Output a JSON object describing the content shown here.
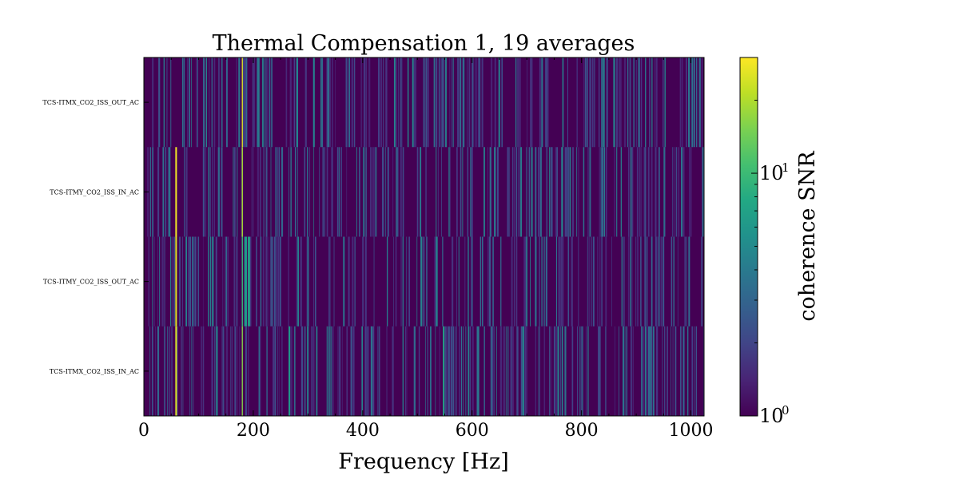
{
  "chart_data": {
    "type": "heatmap",
    "title": "Thermal Compensation 1, 19 averages",
    "xlabel": "Frequency [Hz]",
    "xlim": [
      0,
      1024
    ],
    "x_ticks": [
      0,
      200,
      400,
      600,
      800,
      1000
    ],
    "x_tick_labels": [
      "0",
      "200",
      "400",
      "600",
      "800",
      "1000"
    ],
    "rows": [
      {
        "label": "TCS-ITMX_CO2_ISS_OUT_AC",
        "highlights": [
          {
            "freq": 180,
            "width": 2,
            "snr": 25
          },
          {
            "freq": 37,
            "width": 2,
            "snr": 4
          },
          {
            "freq": 210,
            "width": 3,
            "snr": 4
          },
          {
            "freq": 338,
            "width": 2,
            "snr": 4
          },
          {
            "freq": 483,
            "width": 2,
            "snr": 5
          },
          {
            "freq": 585,
            "width": 2,
            "snr": 4
          },
          {
            "freq": 650,
            "width": 2,
            "snr": 5
          },
          {
            "freq": 766,
            "width": 2,
            "snr": 5
          },
          {
            "freq": 917,
            "width": 2,
            "snr": 4
          }
        ]
      },
      {
        "label": "TCS-ITMY_CO2_ISS_IN_AC",
        "highlights": [
          {
            "freq": 59,
            "width": 3,
            "snr": 28
          },
          {
            "freq": 180,
            "width": 2,
            "snr": 20
          },
          {
            "freq": 269,
            "width": 2,
            "snr": 4
          },
          {
            "freq": 506,
            "width": 2,
            "snr": 4
          },
          {
            "freq": 558,
            "width": 2,
            "snr": 4
          },
          {
            "freq": 641,
            "width": 2,
            "snr": 5
          },
          {
            "freq": 690,
            "width": 2,
            "snr": 4
          },
          {
            "freq": 842,
            "width": 2,
            "snr": 4
          },
          {
            "freq": 951,
            "width": 2,
            "snr": 4
          }
        ]
      },
      {
        "label": "TCS-ITMY_CO2_ISS_OUT_AC",
        "highlights": [
          {
            "freq": 59,
            "width": 3,
            "snr": 25
          },
          {
            "freq": 180,
            "width": 2,
            "snr": 10
          },
          {
            "freq": 186,
            "width": 5,
            "snr": 6
          },
          {
            "freq": 192,
            "width": 4,
            "snr": 7
          },
          {
            "freq": 122,
            "width": 2,
            "snr": 4
          },
          {
            "freq": 445,
            "width": 2,
            "snr": 4
          },
          {
            "freq": 593,
            "width": 2,
            "snr": 4
          },
          {
            "freq": 700,
            "width": 2,
            "snr": 5
          },
          {
            "freq": 874,
            "width": 2,
            "snr": 4
          }
        ]
      },
      {
        "label": "TCS-ITMX_CO2_ISS_IN_AC",
        "highlights": [
          {
            "freq": 59,
            "width": 3,
            "snr": 25
          },
          {
            "freq": 180,
            "width": 2,
            "snr": 16
          },
          {
            "freq": 266,
            "width": 3,
            "snr": 6
          },
          {
            "freq": 548,
            "width": 3,
            "snr": 7
          },
          {
            "freq": 342,
            "width": 2,
            "snr": 4
          },
          {
            "freq": 612,
            "width": 2,
            "snr": 4
          },
          {
            "freq": 771,
            "width": 2,
            "snr": 4
          },
          {
            "freq": 926,
            "width": 2,
            "snr": 4
          }
        ]
      }
    ],
    "colorbar": {
      "label": "coherence SNR",
      "scale": "log",
      "min": 1,
      "max": 30,
      "colormap": "viridis",
      "tick_labels": [
        {
          "value": 1,
          "base": "10",
          "exponent": "0"
        },
        {
          "value": 10,
          "base": "10",
          "exponent": "1"
        }
      ]
    }
  }
}
